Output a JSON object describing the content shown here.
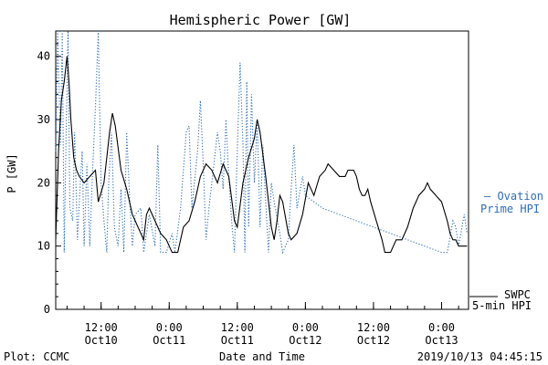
{
  "chart_data": {
    "type": "line",
    "title": "Hemispheric Power [GW]",
    "xlabel": "Date and Time",
    "ylabel": "P [GW]",
    "ylim": [
      0,
      44
    ],
    "y_ticks": [
      0,
      10,
      20,
      30,
      40
    ],
    "x_ticks": [
      {
        "time": "2019-10-10 12:00",
        "label_time": "12:00",
        "label_date": "Oct10"
      },
      {
        "time": "2019-10-11 00:00",
        "label_time": "0:00",
        "label_date": "Oct11"
      },
      {
        "time": "2019-10-11 12:00",
        "label_time": "12:00",
        "label_date": "Oct11"
      },
      {
        "time": "2019-10-12 00:00",
        "label_time": "0:00",
        "label_date": "Oct12"
      },
      {
        "time": "2019-10-12 12:00",
        "label_time": "12:00",
        "label_date": "Oct12"
      },
      {
        "time": "2019-10-13 00:00",
        "label_time": "0:00",
        "label_date": "Oct13"
      }
    ],
    "xlim": [
      "2019-10-10 04:00",
      "2019-10-13 04:45"
    ],
    "legend_position": "right",
    "series": [
      {
        "name": "SWPC 5-min HPI",
        "style": "solid",
        "color": "#000000",
        "points": [
          [
            "2019-10-10 04:00",
            11
          ],
          [
            "2019-10-10 04:30",
            25
          ],
          [
            "2019-10-10 05:00",
            33
          ],
          [
            "2019-10-10 05:30",
            36
          ],
          [
            "2019-10-10 06:00",
            40
          ],
          [
            "2019-10-10 06:20",
            36
          ],
          [
            "2019-10-10 06:40",
            30
          ],
          [
            "2019-10-10 07:10",
            24
          ],
          [
            "2019-10-10 07:40",
            22
          ],
          [
            "2019-10-10 08:10",
            21
          ],
          [
            "2019-10-10 09:00",
            20
          ],
          [
            "2019-10-10 10:00",
            21
          ],
          [
            "2019-10-10 11:00",
            22
          ],
          [
            "2019-10-10 11:30",
            17
          ],
          [
            "2019-10-10 12:30",
            20
          ],
          [
            "2019-10-10 13:30",
            28
          ],
          [
            "2019-10-10 14:00",
            31
          ],
          [
            "2019-10-10 14:30",
            29
          ],
          [
            "2019-10-10 15:30",
            22
          ],
          [
            "2019-10-10 16:30",
            19
          ],
          [
            "2019-10-10 17:30",
            15
          ],
          [
            "2019-10-10 18:30",
            13
          ],
          [
            "2019-10-10 19:30",
            11
          ],
          [
            "2019-10-10 20:00",
            15
          ],
          [
            "2019-10-10 20:30",
            16
          ],
          [
            "2019-10-10 21:30",
            14
          ],
          [
            "2019-10-10 22:30",
            12
          ],
          [
            "2019-10-10 23:30",
            11
          ],
          [
            "2019-10-11 00:30",
            9
          ],
          [
            "2019-10-11 01:30",
            9
          ],
          [
            "2019-10-11 02:30",
            13
          ],
          [
            "2019-10-11 03:30",
            14
          ],
          [
            "2019-10-11 04:30",
            17
          ],
          [
            "2019-10-11 05:30",
            21
          ],
          [
            "2019-10-11 06:30",
            23
          ],
          [
            "2019-10-11 07:30",
            22
          ],
          [
            "2019-10-11 08:30",
            20
          ],
          [
            "2019-10-11 09:30",
            23
          ],
          [
            "2019-10-11 10:30",
            21
          ],
          [
            "2019-10-11 11:30",
            14
          ],
          [
            "2019-10-11 12:00",
            13
          ],
          [
            "2019-10-11 13:00",
            20
          ],
          [
            "2019-10-11 14:00",
            24
          ],
          [
            "2019-10-11 15:00",
            27
          ],
          [
            "2019-10-11 15:30",
            30
          ],
          [
            "2019-10-11 16:00",
            28
          ],
          [
            "2019-10-11 17:00",
            21
          ],
          [
            "2019-10-11 18:00",
            13
          ],
          [
            "2019-10-11 18:30",
            11
          ],
          [
            "2019-10-11 19:00",
            14
          ],
          [
            "2019-10-11 19:30",
            18
          ],
          [
            "2019-10-11 20:00",
            17
          ],
          [
            "2019-10-11 21:00",
            12
          ],
          [
            "2019-10-11 21:30",
            11
          ],
          [
            "2019-10-11 22:30",
            12
          ],
          [
            "2019-10-11 23:30",
            15
          ],
          [
            "2019-10-12 00:30",
            20
          ],
          [
            "2019-10-12 01:00",
            19
          ],
          [
            "2019-10-12 01:30",
            18
          ],
          [
            "2019-10-12 02:30",
            21
          ],
          [
            "2019-10-12 03:30",
            22
          ],
          [
            "2019-10-12 04:00",
            23
          ],
          [
            "2019-10-12 05:00",
            22
          ],
          [
            "2019-10-12 06:00",
            21
          ],
          [
            "2019-10-12 07:00",
            21
          ],
          [
            "2019-10-12 07:30",
            22
          ],
          [
            "2019-10-12 08:30",
            22
          ],
          [
            "2019-10-12 09:00",
            21
          ],
          [
            "2019-10-12 09:30",
            19
          ],
          [
            "2019-10-12 10:00",
            18
          ],
          [
            "2019-10-12 10:30",
            18
          ],
          [
            "2019-10-12 11:00",
            19
          ],
          [
            "2019-10-12 11:30",
            17
          ],
          [
            "2019-10-12 12:30",
            14
          ],
          [
            "2019-10-12 13:30",
            11
          ],
          [
            "2019-10-12 14:00",
            9
          ],
          [
            "2019-10-12 15:00",
            9
          ],
          [
            "2019-10-12 16:00",
            11
          ],
          [
            "2019-10-12 17:00",
            11
          ],
          [
            "2019-10-12 18:00",
            13
          ],
          [
            "2019-10-12 19:00",
            16
          ],
          [
            "2019-10-12 20:00",
            18
          ],
          [
            "2019-10-12 21:00",
            19
          ],
          [
            "2019-10-12 21:30",
            20
          ],
          [
            "2019-10-12 22:00",
            19
          ],
          [
            "2019-10-12 23:00",
            18
          ],
          [
            "2019-10-13 00:00",
            17
          ],
          [
            "2019-10-13 01:00",
            14
          ],
          [
            "2019-10-13 01:30",
            12
          ],
          [
            "2019-10-13 02:00",
            11
          ],
          [
            "2019-10-13 02:30",
            11
          ],
          [
            "2019-10-13 03:00",
            10
          ],
          [
            "2019-10-13 04:00",
            10
          ],
          [
            "2019-10-13 04:30",
            10
          ]
        ]
      },
      {
        "name": "Ovation Prime HPI",
        "style": "dotted",
        "color": "#2f6db5",
        "points": [
          [
            "2019-10-10 04:00",
            25
          ],
          [
            "2019-10-10 04:20",
            44
          ],
          [
            "2019-10-10 04:50",
            26
          ],
          [
            "2019-10-10 05:10",
            44
          ],
          [
            "2019-10-10 05:30",
            9
          ],
          [
            "2019-10-10 05:50",
            28
          ],
          [
            "2019-10-10 06:10",
            44
          ],
          [
            "2019-10-10 06:30",
            16
          ],
          [
            "2019-10-10 07:00",
            14
          ],
          [
            "2019-10-10 07:20",
            28
          ],
          [
            "2019-10-10 07:50",
            11
          ],
          [
            "2019-10-10 08:20",
            20
          ],
          [
            "2019-10-10 08:40",
            25
          ],
          [
            "2019-10-10 09:00",
            10
          ],
          [
            "2019-10-10 09:30",
            23
          ],
          [
            "2019-10-10 10:00",
            10
          ],
          [
            "2019-10-10 10:30",
            22
          ],
          [
            "2019-10-10 11:00",
            32
          ],
          [
            "2019-10-10 11:30",
            44
          ],
          [
            "2019-10-10 12:00",
            20
          ],
          [
            "2019-10-10 12:30",
            14
          ],
          [
            "2019-10-10 13:00",
            9
          ],
          [
            "2019-10-10 13:20",
            20
          ],
          [
            "2019-10-10 13:50",
            28
          ],
          [
            "2019-10-10 14:20",
            13
          ],
          [
            "2019-10-10 15:00",
            10
          ],
          [
            "2019-10-10 15:30",
            19
          ],
          [
            "2019-10-10 16:00",
            9
          ],
          [
            "2019-10-10 16:30",
            28
          ],
          [
            "2019-10-10 17:00",
            18
          ],
          [
            "2019-10-10 17:30",
            10
          ],
          [
            "2019-10-10 18:00",
            15
          ],
          [
            "2019-10-10 19:00",
            16
          ],
          [
            "2019-10-10 19:30",
            9
          ],
          [
            "2019-10-10 20:30",
            15
          ],
          [
            "2019-10-10 21:30",
            10
          ],
          [
            "2019-10-10 22:00",
            26
          ],
          [
            "2019-10-10 22:30",
            9
          ],
          [
            "2019-10-10 23:30",
            9
          ],
          [
            "2019-10-11 00:30",
            12
          ],
          [
            "2019-10-11 01:00",
            9
          ],
          [
            "2019-10-11 02:00",
            16
          ],
          [
            "2019-10-11 03:00",
            28
          ],
          [
            "2019-10-11 03:30",
            29
          ],
          [
            "2019-10-11 04:00",
            16
          ],
          [
            "2019-10-11 05:00",
            25
          ],
          [
            "2019-10-11 05:30",
            33
          ],
          [
            "2019-10-11 06:00",
            23
          ],
          [
            "2019-10-11 06:30",
            11
          ],
          [
            "2019-10-11 07:00",
            16
          ],
          [
            "2019-10-11 07:30",
            20
          ],
          [
            "2019-10-11 08:30",
            28
          ],
          [
            "2019-10-11 09:00",
            25
          ],
          [
            "2019-10-11 09:30",
            19
          ],
          [
            "2019-10-11 10:00",
            30
          ],
          [
            "2019-10-11 10:30",
            21
          ],
          [
            "2019-10-11 11:00",
            14
          ],
          [
            "2019-10-11 11:30",
            9
          ],
          [
            "2019-10-11 12:00",
            25
          ],
          [
            "2019-10-11 12:30",
            39
          ],
          [
            "2019-10-11 13:00",
            26
          ],
          [
            "2019-10-11 13:20",
            9
          ],
          [
            "2019-10-11 13:40",
            36
          ],
          [
            "2019-10-11 14:00",
            13
          ],
          [
            "2019-10-11 14:30",
            34
          ],
          [
            "2019-10-11 15:00",
            20
          ],
          [
            "2019-10-11 15:30",
            30
          ],
          [
            "2019-10-11 16:00",
            13
          ],
          [
            "2019-10-11 16:30",
            26
          ],
          [
            "2019-10-11 17:00",
            17
          ],
          [
            "2019-10-11 17:30",
            9
          ],
          [
            "2019-10-11 18:00",
            20
          ],
          [
            "2019-10-11 18:30",
            17
          ],
          [
            "2019-10-11 19:30",
            12
          ],
          [
            "2019-10-11 20:00",
            9
          ],
          [
            "2019-10-11 21:00",
            11
          ],
          [
            "2019-10-11 21:30",
            19
          ],
          [
            "2019-10-11 22:00",
            26
          ],
          [
            "2019-10-11 22:30",
            16
          ],
          [
            "2019-10-11 23:30",
            21
          ],
          [
            "2019-10-12 00:00",
            18
          ],
          [
            "2019-10-12 03:00",
            16
          ],
          [
            "2019-10-12 06:00",
            15
          ],
          [
            "2019-10-12 09:00",
            14
          ],
          [
            "2019-10-12 12:00",
            13
          ],
          [
            "2019-10-12 15:00",
            12
          ],
          [
            "2019-10-12 18:00",
            11
          ],
          [
            "2019-10-12 21:00",
            10
          ],
          [
            "2019-10-13 00:00",
            9
          ],
          [
            "2019-10-13 01:00",
            9
          ],
          [
            "2019-10-13 02:00",
            14
          ],
          [
            "2019-10-13 02:30",
            13
          ],
          [
            "2019-10-13 03:00",
            10
          ],
          [
            "2019-10-13 04:00",
            15
          ],
          [
            "2019-10-13 04:30",
            12
          ]
        ]
      }
    ]
  },
  "legend": {
    "ovation_line1": "— Ovation",
    "ovation_line2": "Prime HPI",
    "swpc_line1": "SWPC",
    "swpc_line2": "5-min HPI"
  },
  "footer": {
    "plot_credit": "Plot: CCMC",
    "timestamp": "2019/10/13 04:45:15"
  },
  "colors": {
    "ovation": "#2f6db5",
    "swpc": "#000000"
  }
}
